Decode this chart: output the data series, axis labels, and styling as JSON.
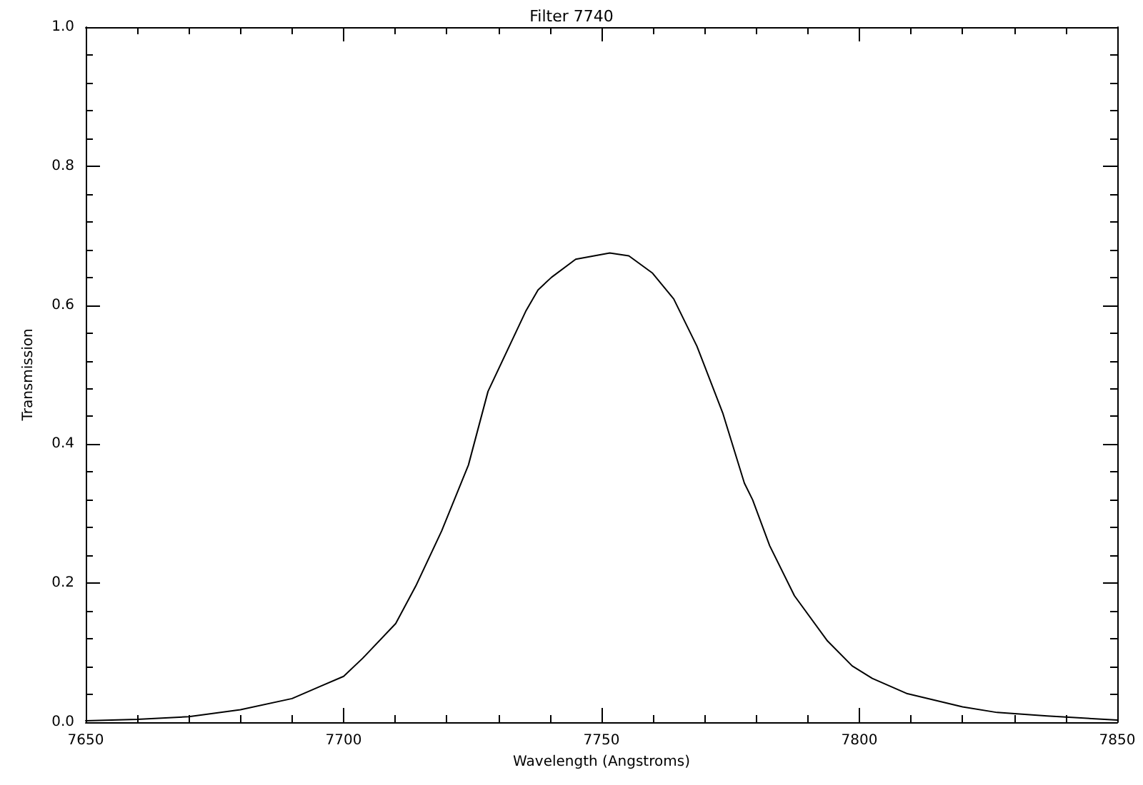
{
  "chart_data": {
    "type": "line",
    "title": "Filter 7740",
    "xlabel": "Wavelength (Angstroms)",
    "ylabel": "Transmission",
    "x": [
      7650,
      7660,
      7670,
      7680,
      7690,
      7695.6,
      7700,
      7703.7,
      7710.1,
      7714,
      7719,
      7724.2,
      7728,
      7735.3,
      7737.7,
      7740.3,
      7745,
      7751.6,
      7755.3,
      7759.9,
      7764,
      7768.5,
      7773.5,
      7777.7,
      7779.3,
      7782.6,
      7787.4,
      7793.8,
      7798.6,
      7802.5,
      7809.3,
      7820,
      7826.7,
      7836.4,
      7850
    ],
    "series": [
      {
        "color": "#000000",
        "values": [
          0.002,
          0.004,
          0.008,
          0.018,
          0.034,
          0.052,
          0.066,
          0.092,
          0.142,
          0.196,
          0.275,
          0.37,
          0.476,
          0.591,
          0.622,
          0.64,
          0.666,
          0.675,
          0.671,
          0.646,
          0.609,
          0.541,
          0.445,
          0.344,
          0.32,
          0.254,
          0.182,
          0.117,
          0.081,
          0.063,
          0.041,
          0.022,
          0.014,
          0.009,
          0.003
        ]
      }
    ],
    "xlim": [
      7650,
      7850
    ],
    "xticks": [
      7650,
      7700,
      7750,
      7800,
      7850
    ],
    "ylim": [
      0,
      1
    ],
    "yticks": [
      {
        "value": 0,
        "label": "0.0"
      },
      {
        "value": 0.2,
        "label": "0.2"
      },
      {
        "value": 0.4,
        "label": "0.4"
      },
      {
        "value": 0.6,
        "label": "0.6"
      },
      {
        "value": 0.8,
        "label": "0.8"
      },
      {
        "value": 1,
        "label": "1.0"
      }
    ],
    "marker": "none",
    "line_style": "solid"
  }
}
